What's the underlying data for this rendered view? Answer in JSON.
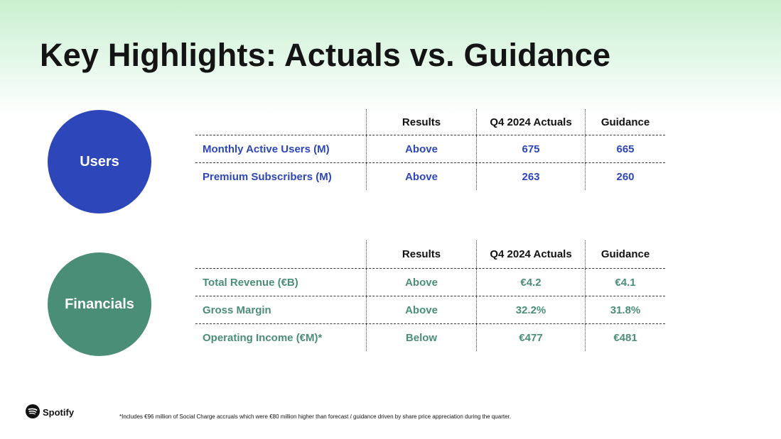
{
  "title": "Key Highlights: Actuals vs. Guidance",
  "colors": {
    "users": "#2d46b9",
    "financials": "#4a8e78",
    "title": "#141414"
  },
  "users": {
    "circle_label": "Users",
    "headers": {
      "results": "Results",
      "actuals": "Q4 2024 Actuals",
      "guidance": "Guidance"
    },
    "rows": [
      {
        "label": "Monthly Active Users (M)",
        "result": "Above",
        "actual": "675",
        "guidance": "665"
      },
      {
        "label": "Premium Subscribers (M)",
        "result": "Above",
        "actual": "263",
        "guidance": "260"
      }
    ]
  },
  "financials": {
    "circle_label": "Financials",
    "headers": {
      "results": "Results",
      "actuals": "Q4 2024 Actuals",
      "guidance": "Guidance"
    },
    "rows": [
      {
        "label": "Total Revenue (€B)",
        "result": "Above",
        "actual": "€4.2",
        "guidance": "€4.1"
      },
      {
        "label": "Gross Margin",
        "result": "Above",
        "actual": "32.2%",
        "guidance": "31.8%"
      },
      {
        "label": "Operating Income (€M)*",
        "result": "Below",
        "actual": "€477",
        "guidance": "€481"
      }
    ]
  },
  "logo": {
    "icon": "spotify-logo-icon",
    "text": "Spotify"
  },
  "footnote": "*Includes €96 million of Social Charge accruals which were €80 million higher than forecast / guidance driven by share price appreciation during the quarter."
}
